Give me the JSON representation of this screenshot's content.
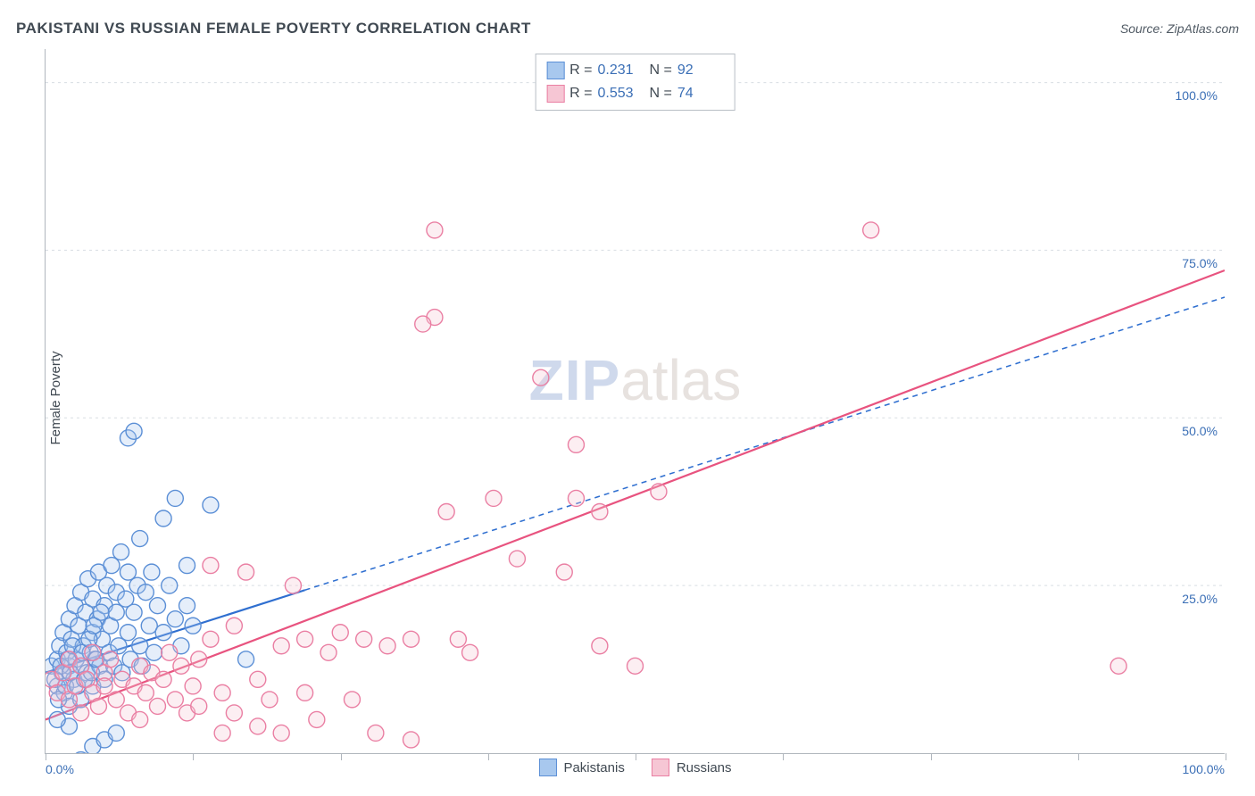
{
  "header": {
    "title": "PAKISTANI VS RUSSIAN FEMALE POVERTY CORRELATION CHART",
    "source_prefix": "Source: ",
    "source_name": "ZipAtlas.com"
  },
  "watermark": {
    "part1": "ZIP",
    "part2": "atlas"
  },
  "chart": {
    "type": "scatter",
    "ylabel": "Female Poverty",
    "xlim": [
      0,
      100
    ],
    "ylim": [
      0,
      105
    ],
    "xtick_positions": [
      0,
      12.5,
      25,
      37.5,
      50,
      62.5,
      75,
      87.5,
      100
    ],
    "xtick_labels": {
      "first": "0.0%",
      "last": "100.0%"
    },
    "ytick_positions": [
      25,
      50,
      75,
      100
    ],
    "ytick_labels": [
      "25.0%",
      "50.0%",
      "75.0%",
      "100.0%"
    ],
    "background_color": "#ffffff",
    "grid_color": "#d8dde2",
    "axis_color": "#b0b6bd",
    "tick_label_color": "#3b6fb6",
    "marker_radius": 9,
    "marker_fill_opacity": 0.3,
    "marker_stroke_width": 1.4,
    "series": [
      {
        "name": "Pakistanis",
        "color_fill": "#a8c8ee",
        "color_stroke": "#5b8fd6",
        "line_color": "#2f6fd0",
        "line_width": 2.2,
        "line_solid_until_x": 22,
        "line_dash": "6 5",
        "regression": {
          "x1": 0,
          "y1": 12,
          "x2": 100,
          "y2": 68
        },
        "R": 0.231,
        "N": 92,
        "points": [
          [
            0.5,
            13
          ],
          [
            1,
            14
          ],
          [
            1,
            10
          ],
          [
            1.2,
            16
          ],
          [
            1.4,
            12
          ],
          [
            1.5,
            18
          ],
          [
            1.6,
            9
          ],
          [
            1.8,
            15
          ],
          [
            2,
            13
          ],
          [
            2,
            20
          ],
          [
            2,
            7
          ],
          [
            2.2,
            17
          ],
          [
            2.4,
            11
          ],
          [
            2.5,
            22
          ],
          [
            2.6,
            14
          ],
          [
            2.8,
            19
          ],
          [
            3,
            13
          ],
          [
            3,
            24
          ],
          [
            3,
            8
          ],
          [
            3.2,
            16
          ],
          [
            3.4,
            21
          ],
          [
            3.5,
            12
          ],
          [
            3.6,
            26
          ],
          [
            3.8,
            15
          ],
          [
            4,
            18
          ],
          [
            4,
            10
          ],
          [
            4,
            23
          ],
          [
            4.2,
            14
          ],
          [
            4.4,
            20
          ],
          [
            4.5,
            27
          ],
          [
            4.6,
            13
          ],
          [
            4.8,
            17
          ],
          [
            5,
            22
          ],
          [
            5,
            11
          ],
          [
            5.2,
            25
          ],
          [
            5.4,
            15
          ],
          [
            5.5,
            19
          ],
          [
            5.6,
            28
          ],
          [
            5.8,
            13
          ],
          [
            6,
            21
          ],
          [
            6,
            24
          ],
          [
            6.2,
            16
          ],
          [
            6.4,
            30
          ],
          [
            6.5,
            12
          ],
          [
            6.8,
            23
          ],
          [
            7,
            18
          ],
          [
            7,
            27
          ],
          [
            7.2,
            14
          ],
          [
            7.5,
            21
          ],
          [
            7.8,
            25
          ],
          [
            8,
            16
          ],
          [
            8,
            32
          ],
          [
            8.2,
            13
          ],
          [
            8.5,
            24
          ],
          [
            8.8,
            19
          ],
          [
            9,
            27
          ],
          [
            9.2,
            15
          ],
          [
            9.5,
            22
          ],
          [
            10,
            35
          ],
          [
            10,
            18
          ],
          [
            10.5,
            25
          ],
          [
            11,
            20
          ],
          [
            11,
            38
          ],
          [
            11.5,
            16
          ],
          [
            12,
            28
          ],
          [
            12,
            22
          ],
          [
            12.5,
            19
          ],
          [
            3,
            -1
          ],
          [
            4,
            1
          ],
          [
            5,
            2
          ],
          [
            6,
            3
          ],
          [
            2,
            4
          ],
          [
            1,
            5
          ],
          [
            7,
            47
          ],
          [
            7.5,
            48
          ],
          [
            14,
            37
          ],
          [
            17,
            14
          ],
          [
            0.8,
            11
          ],
          [
            1.1,
            8
          ],
          [
            1.3,
            13
          ],
          [
            1.7,
            10
          ],
          [
            1.9,
            14
          ],
          [
            2.1,
            12
          ],
          [
            2.3,
            16
          ],
          [
            2.7,
            10
          ],
          [
            3.1,
            15
          ],
          [
            3.3,
            11
          ],
          [
            3.7,
            17
          ],
          [
            3.9,
            12
          ],
          [
            4.1,
            19
          ],
          [
            4.3,
            14
          ],
          [
            4.7,
            21
          ]
        ]
      },
      {
        "name": "Russians",
        "color_fill": "#f6c6d4",
        "color_stroke": "#ea7fa3",
        "line_color": "#e8537f",
        "line_width": 2.2,
        "line_solid_until_x": 100,
        "regression": {
          "x1": 0,
          "y1": 5,
          "x2": 100,
          "y2": 72
        },
        "R": 0.553,
        "N": 74,
        "points": [
          [
            0.5,
            11
          ],
          [
            1,
            9
          ],
          [
            1.5,
            12
          ],
          [
            2,
            8
          ],
          [
            2,
            14
          ],
          [
            2.5,
            10
          ],
          [
            3,
            13
          ],
          [
            3,
            6
          ],
          [
            3.5,
            11
          ],
          [
            4,
            9
          ],
          [
            4,
            15
          ],
          [
            4.5,
            7
          ],
          [
            5,
            12
          ],
          [
            5,
            10
          ],
          [
            5.5,
            14
          ],
          [
            6,
            8
          ],
          [
            6.5,
            11
          ],
          [
            7,
            6
          ],
          [
            7.5,
            10
          ],
          [
            8,
            13
          ],
          [
            8,
            5
          ],
          [
            8.5,
            9
          ],
          [
            9,
            12
          ],
          [
            9.5,
            7
          ],
          [
            10,
            11
          ],
          [
            10.5,
            15
          ],
          [
            11,
            8
          ],
          [
            11.5,
            13
          ],
          [
            12,
            6
          ],
          [
            12.5,
            10
          ],
          [
            13,
            14
          ],
          [
            14,
            17
          ],
          [
            14,
            28
          ],
          [
            15,
            9
          ],
          [
            15,
            3
          ],
          [
            16,
            6
          ],
          [
            16,
            19
          ],
          [
            17,
            27
          ],
          [
            18,
            4
          ],
          [
            18,
            11
          ],
          [
            19,
            8
          ],
          [
            20,
            16
          ],
          [
            20,
            3
          ],
          [
            21,
            25
          ],
          [
            22,
            17
          ],
          [
            23,
            5
          ],
          [
            24,
            15
          ],
          [
            25,
            18
          ],
          [
            26,
            8
          ],
          [
            27,
            17
          ],
          [
            28,
            3
          ],
          [
            29,
            16
          ],
          [
            31,
            2
          ],
          [
            31,
            17
          ],
          [
            33,
            65
          ],
          [
            32,
            64
          ],
          [
            33,
            78
          ],
          [
            35,
            17
          ],
          [
            38,
            38
          ],
          [
            40,
            29
          ],
          [
            42,
            56
          ],
          [
            44,
            27
          ],
          [
            45,
            38
          ],
          [
            45,
            46
          ],
          [
            47,
            36
          ],
          [
            47,
            16
          ],
          [
            52,
            39
          ],
          [
            50,
            13
          ],
          [
            70,
            78
          ],
          [
            91,
            13
          ],
          [
            34,
            36
          ],
          [
            36,
            15
          ],
          [
            22,
            9
          ],
          [
            13,
            7
          ]
        ]
      }
    ],
    "legend_top": {
      "R_label": "R =",
      "N_label": "N ="
    },
    "bottom_legend": [
      "Pakistanis",
      "Russians"
    ]
  }
}
